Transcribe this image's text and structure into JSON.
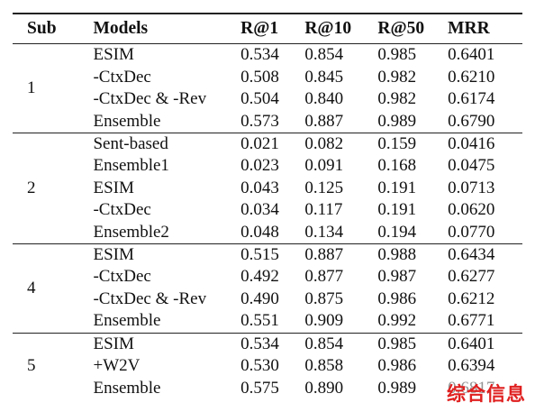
{
  "headers": {
    "sub": "Sub",
    "models": "Models",
    "r1": "R@1",
    "r10": "R@10",
    "r50": "R@50",
    "mrr": "MRR"
  },
  "groups": [
    {
      "sub": "1",
      "rows": [
        {
          "model": "ESIM",
          "r1": "0.534",
          "r10": "0.854",
          "r50": "0.985",
          "mrr": "0.6401"
        },
        {
          "model": "-CtxDec",
          "r1": "0.508",
          "r10": "0.845",
          "r50": "0.982",
          "mrr": "0.6210"
        },
        {
          "model": "-CtxDec & -Rev",
          "r1": "0.504",
          "r10": "0.840",
          "r50": "0.982",
          "mrr": "0.6174"
        },
        {
          "model": "Ensemble",
          "r1": "0.573",
          "r10": "0.887",
          "r50": "0.989",
          "mrr": "0.6790"
        }
      ]
    },
    {
      "sub": "2",
      "rows": [
        {
          "model": "Sent-based",
          "r1": "0.021",
          "r10": "0.082",
          "r50": "0.159",
          "mrr": "0.0416"
        },
        {
          "model": "Ensemble1",
          "r1": "0.023",
          "r10": "0.091",
          "r50": "0.168",
          "mrr": "0.0475"
        },
        {
          "model": "ESIM",
          "r1": "0.043",
          "r10": "0.125",
          "r50": "0.191",
          "mrr": "0.0713"
        },
        {
          "model": "-CtxDec",
          "r1": "0.034",
          "r10": "0.117",
          "r50": "0.191",
          "mrr": "0.0620"
        },
        {
          "model": "Ensemble2",
          "r1": "0.048",
          "r10": "0.134",
          "r50": "0.194",
          "mrr": "0.0770"
        }
      ]
    },
    {
      "sub": "4",
      "rows": [
        {
          "model": "ESIM",
          "r1": "0.515",
          "r10": "0.887",
          "r50": "0.988",
          "mrr": "0.6434"
        },
        {
          "model": "-CtxDec",
          "r1": "0.492",
          "r10": "0.877",
          "r50": "0.987",
          "mrr": "0.6277"
        },
        {
          "model": "-CtxDec & -Rev",
          "r1": "0.490",
          "r10": "0.875",
          "r50": "0.986",
          "mrr": "0.6212"
        },
        {
          "model": "Ensemble",
          "r1": "0.551",
          "r10": "0.909",
          "r50": "0.992",
          "mrr": "0.6771"
        }
      ]
    },
    {
      "sub": "5",
      "rows": [
        {
          "model": "ESIM",
          "r1": "0.534",
          "r10": "0.854",
          "r50": "0.985",
          "mrr": "0.6401"
        },
        {
          "model": "+W2V",
          "r1": "0.530",
          "r10": "0.858",
          "r50": "0.986",
          "mrr": "0.6394"
        },
        {
          "model": "Ensemble",
          "r1": "0.575",
          "r10": "0.890",
          "r50": "0.989",
          "mrr": "0.6817"
        }
      ]
    }
  ],
  "watermark": "综合信息"
}
